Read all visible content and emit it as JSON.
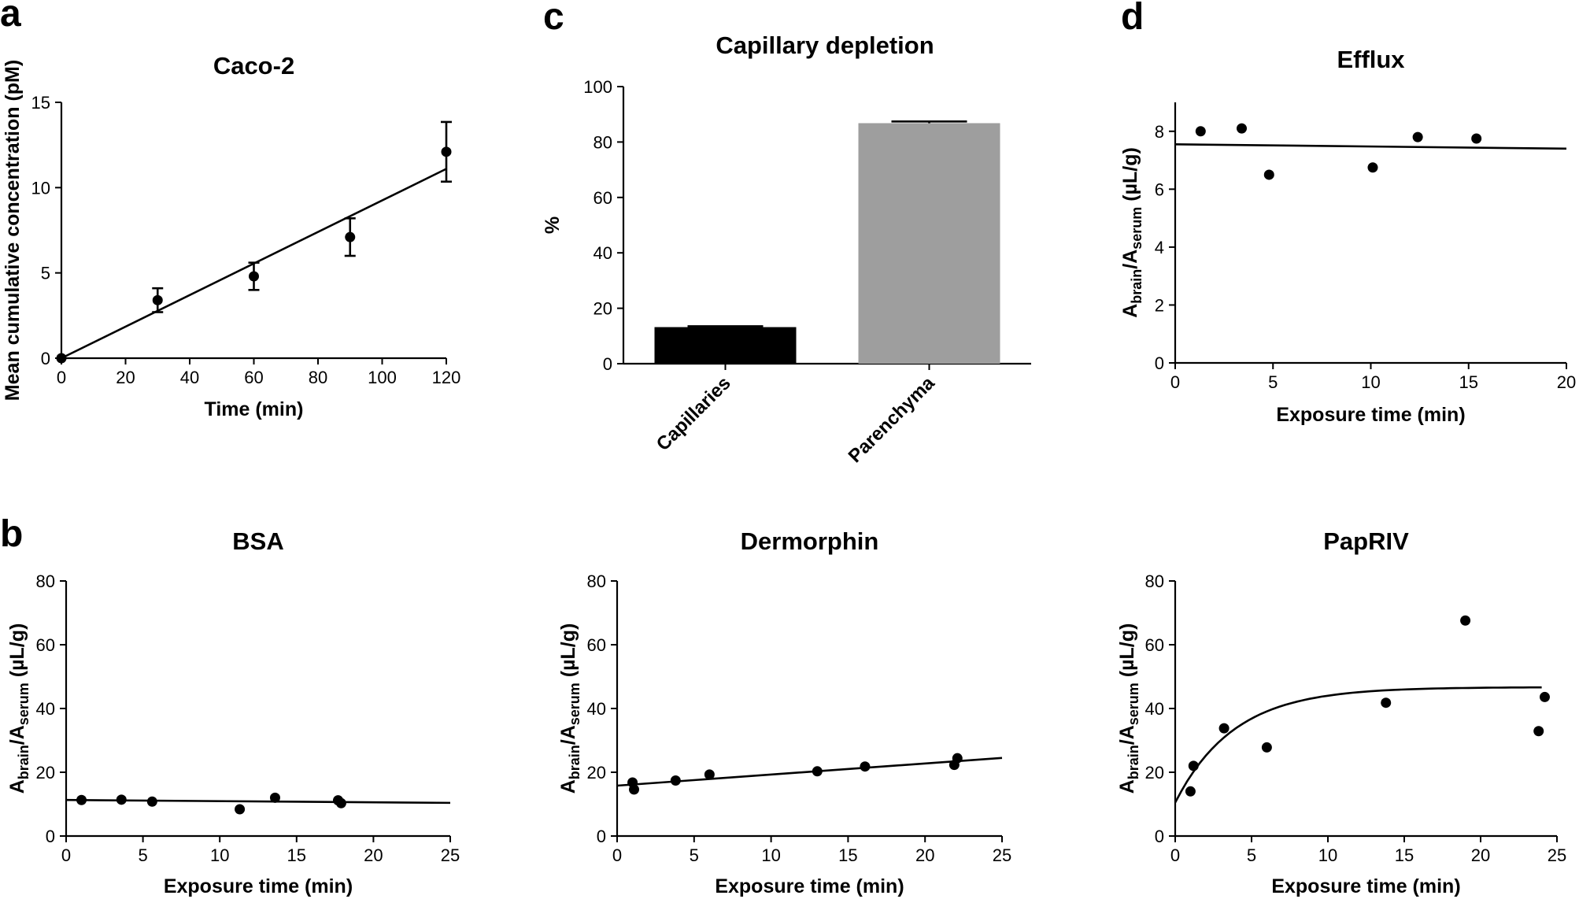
{
  "panels": {
    "a": "a",
    "b": "b",
    "c": "c",
    "d": "d"
  },
  "chart_data": [
    {
      "id": "caco2",
      "type": "scatter",
      "title": "Caco-2",
      "xlabel": "Time (min)",
      "ylabel": "Mean cumulative concentration (pM)",
      "xlim": [
        0,
        120
      ],
      "ylim": [
        0,
        15
      ],
      "xticks": [
        0,
        20,
        40,
        60,
        80,
        100,
        120
      ],
      "yticks": [
        0,
        5,
        10,
        15
      ],
      "x": [
        0,
        30,
        60,
        90,
        120
      ],
      "y": [
        0,
        3.4,
        4.8,
        7.1,
        12.1
      ],
      "err": [
        0,
        0.7,
        0.8,
        1.1,
        1.75
      ],
      "fit": {
        "type": "linear",
        "x": [
          0,
          120
        ],
        "y": [
          0,
          11.1
        ]
      }
    },
    {
      "id": "capillary",
      "type": "bar",
      "title": "Capillary depletion",
      "xlabel": "",
      "ylabel": "%",
      "ylim": [
        0,
        100
      ],
      "yticks": [
        0,
        20,
        40,
        60,
        80,
        100
      ],
      "categories": [
        "Capillaries",
        "Parenchyma"
      ],
      "values": [
        13.2,
        86.8
      ],
      "err": [
        0.3,
        0.6
      ],
      "colors": [
        "#000000",
        "#9e9e9e"
      ]
    },
    {
      "id": "efflux",
      "type": "scatter",
      "title": "Efflux",
      "xlabel": "Exposure time (min)",
      "ylabel": "Abrain/Aserum (µL/g)",
      "ylabel_parts": [
        "A",
        "brain",
        "/A",
        "serum",
        " (µL/g)"
      ],
      "xlim": [
        0,
        20
      ],
      "ylim": [
        0,
        9
      ],
      "xticks": [
        0,
        5,
        10,
        15,
        20
      ],
      "yticks": [
        0,
        2,
        4,
        6,
        8
      ],
      "x": [
        1.3,
        3.4,
        4.8,
        10.1,
        12.4,
        15.4
      ],
      "y": [
        8.0,
        8.1,
        6.5,
        6.75,
        7.8,
        7.75
      ],
      "fit": {
        "type": "linear",
        "x": [
          0,
          20
        ],
        "y": [
          7.55,
          7.4
        ]
      }
    },
    {
      "id": "bsa",
      "type": "scatter",
      "title": "BSA",
      "xlabel": "Exposure time (min)",
      "ylabel": "Abrain/Aserum (µL/g)",
      "ylabel_parts": [
        "A",
        "brain",
        "/A",
        "serum",
        " (µL/g)"
      ],
      "xlim": [
        0,
        25
      ],
      "ylim": [
        0,
        80
      ],
      "xticks": [
        0,
        5,
        10,
        15,
        20,
        25
      ],
      "yticks": [
        0,
        20,
        40,
        60,
        80
      ],
      "x": [
        1.0,
        3.6,
        5.6,
        11.3,
        13.6,
        17.7,
        17.9
      ],
      "y": [
        11.3,
        11.4,
        10.8,
        8.4,
        12.0,
        11.2,
        10.3
      ],
      "fit": {
        "type": "linear",
        "x": [
          0,
          25
        ],
        "y": [
          11.3,
          10.4
        ]
      }
    },
    {
      "id": "dermorphin",
      "type": "scatter",
      "title": "Dermorphin",
      "xlabel": "Exposure time (min)",
      "ylabel": "Abrain/Aserum (µL/g)",
      "ylabel_parts": [
        "A",
        "brain",
        "/A",
        "serum",
        " (µL/g)"
      ],
      "xlim": [
        0,
        25
      ],
      "ylim": [
        0,
        80
      ],
      "xticks": [
        0,
        5,
        10,
        15,
        20,
        25
      ],
      "yticks": [
        0,
        20,
        40,
        60,
        80
      ],
      "x": [
        1.0,
        1.1,
        3.8,
        6.0,
        13.0,
        16.1,
        21.9,
        22.1
      ],
      "y": [
        16.8,
        14.6,
        17.4,
        19.3,
        20.3,
        21.8,
        22.3,
        24.4
      ],
      "fit": {
        "type": "linear",
        "x": [
          0,
          25
        ],
        "y": [
          15.8,
          24.5
        ]
      }
    },
    {
      "id": "paprIV",
      "type": "scatter",
      "title": "PapRIV",
      "xlabel": "Exposure time (min)",
      "ylabel": "Abrain/Aserum (µL/g)",
      "ylabel_parts": [
        "A",
        "brain",
        "/A",
        "serum",
        " (µL/g)"
      ],
      "xlim": [
        0,
        25
      ],
      "ylim": [
        0,
        80
      ],
      "xticks": [
        0,
        5,
        10,
        15,
        20,
        25
      ],
      "yticks": [
        0,
        20,
        40,
        60,
        80
      ],
      "x": [
        1.0,
        1.2,
        3.2,
        6.0,
        13.8,
        19.0,
        23.8,
        24.2
      ],
      "y": [
        14.0,
        22.0,
        33.8,
        27.8,
        41.8,
        67.6,
        32.9,
        43.6
      ],
      "fit": {
        "type": "exponential",
        "x_range": [
          0,
          24
        ],
        "y0": 10.5,
        "plateau": 46.7,
        "k": 0.26
      }
    }
  ]
}
